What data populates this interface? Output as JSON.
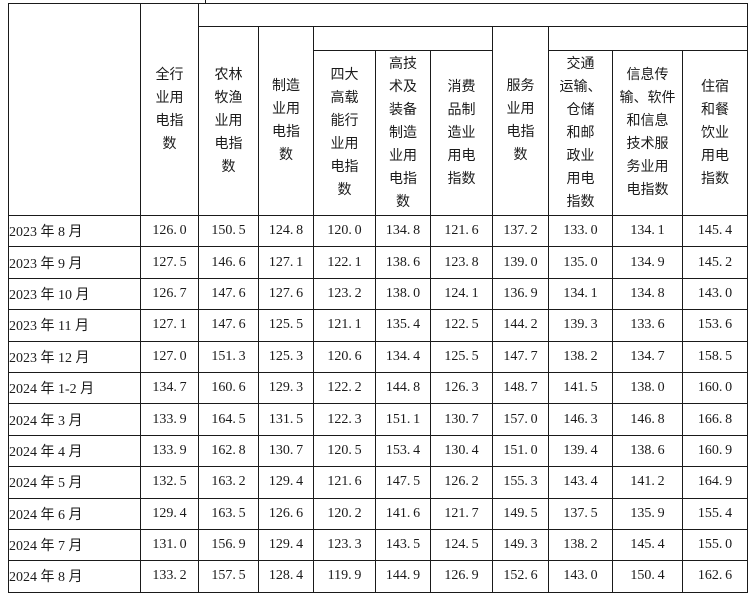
{
  "table": {
    "corner_label": "",
    "columns": [
      {
        "id": "all_industry",
        "label": "全行\n业用\n电指\n数"
      },
      {
        "id": "agriculture",
        "label": "农林\n牧渔\n业用\n电指\n数"
      },
      {
        "id": "manufacturing",
        "label": "制造\n业用\n电指\n数"
      },
      {
        "id": "four_high_energy",
        "label": "四大\n高载\n能行\n业用\n电指\n数"
      },
      {
        "id": "hightech_equipment",
        "label": "高技\n术及\n装备\n制造\n业用\n电指\n数"
      },
      {
        "id": "consumer_goods",
        "label": "消费\n品制\n造业\n用电\n指数"
      },
      {
        "id": "services",
        "label": "服务\n业用\n电指\n数"
      },
      {
        "id": "transport_storage_post",
        "label": "交通\n运输、\n仓储\n和邮\n政业\n用电\n指数"
      },
      {
        "id": "info_software_it",
        "label": "信息传\n输、软件\n和信息\n技术服\n务业用\n电指数"
      },
      {
        "id": "hotel_catering",
        "label": "住宿\n和餐\n饮业\n用电\n指数"
      }
    ],
    "rows": [
      {
        "label": "2023 年 8 月",
        "values": [
          "126.0",
          "150.5",
          "124.8",
          "120.0",
          "134.8",
          "121.6",
          "137.2",
          "133.0",
          "134.1",
          "145.4"
        ]
      },
      {
        "label": "2023 年 9 月",
        "values": [
          "127.5",
          "146.6",
          "127.1",
          "122.1",
          "138.6",
          "123.8",
          "139.0",
          "135.0",
          "134.9",
          "145.2"
        ]
      },
      {
        "label": "2023 年 10 月",
        "values": [
          "126.7",
          "147.6",
          "127.6",
          "123.2",
          "138.0",
          "124.1",
          "136.9",
          "134.1",
          "134.8",
          "143.0"
        ]
      },
      {
        "label": "2023 年 11 月",
        "values": [
          "127.1",
          "147.6",
          "125.5",
          "121.1",
          "135.4",
          "122.5",
          "144.2",
          "139.3",
          "133.6",
          "153.6"
        ]
      },
      {
        "label": "2023 年 12 月",
        "values": [
          "127.0",
          "151.3",
          "125.3",
          "120.6",
          "134.4",
          "125.5",
          "147.7",
          "138.2",
          "134.7",
          "158.5"
        ]
      },
      {
        "label": "2024 年 1-2 月",
        "values": [
          "134.7",
          "160.6",
          "129.3",
          "122.2",
          "144.8",
          "126.3",
          "148.7",
          "141.5",
          "138.0",
          "160.0"
        ]
      },
      {
        "label": "2024 年 3 月",
        "values": [
          "133.9",
          "164.5",
          "131.5",
          "122.3",
          "151.1",
          "130.7",
          "157.0",
          "146.3",
          "146.8",
          "166.8"
        ]
      },
      {
        "label": "2024 年 4 月",
        "values": [
          "133.9",
          "162.8",
          "130.7",
          "120.5",
          "153.4",
          "130.4",
          "151.0",
          "139.4",
          "138.6",
          "160.9"
        ]
      },
      {
        "label": "2024 年 5 月",
        "values": [
          "132.5",
          "163.2",
          "129.4",
          "121.6",
          "147.5",
          "126.2",
          "155.3",
          "143.4",
          "141.2",
          "164.9"
        ]
      },
      {
        "label": "2024 年 6 月",
        "values": [
          "129.4",
          "163.5",
          "126.6",
          "120.2",
          "141.6",
          "121.7",
          "149.5",
          "137.5",
          "135.9",
          "155.4"
        ]
      },
      {
        "label": "2024 年 7 月",
        "values": [
          "131.0",
          "156.9",
          "129.4",
          "123.3",
          "143.5",
          "124.5",
          "149.3",
          "138.2",
          "145.4",
          "155.0"
        ]
      },
      {
        "label": "2024 年 8 月",
        "values": [
          "133.2",
          "157.5",
          "128.4",
          "119.9",
          "144.9",
          "126.9",
          "152.6",
          "143.0",
          "150.4",
          "162.6"
        ]
      }
    ]
  },
  "colors": {
    "border": "#1a1a1a",
    "text": "#1a1a1a",
    "background": "#ffffff"
  }
}
